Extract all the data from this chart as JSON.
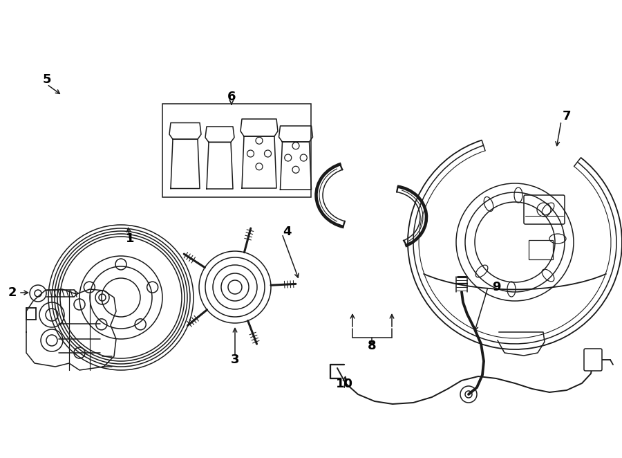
{
  "background_color": "#ffffff",
  "line_color": "#1a1a1a",
  "lw": 1.1,
  "fig_width": 9.0,
  "fig_height": 6.62,
  "dpi": 100
}
